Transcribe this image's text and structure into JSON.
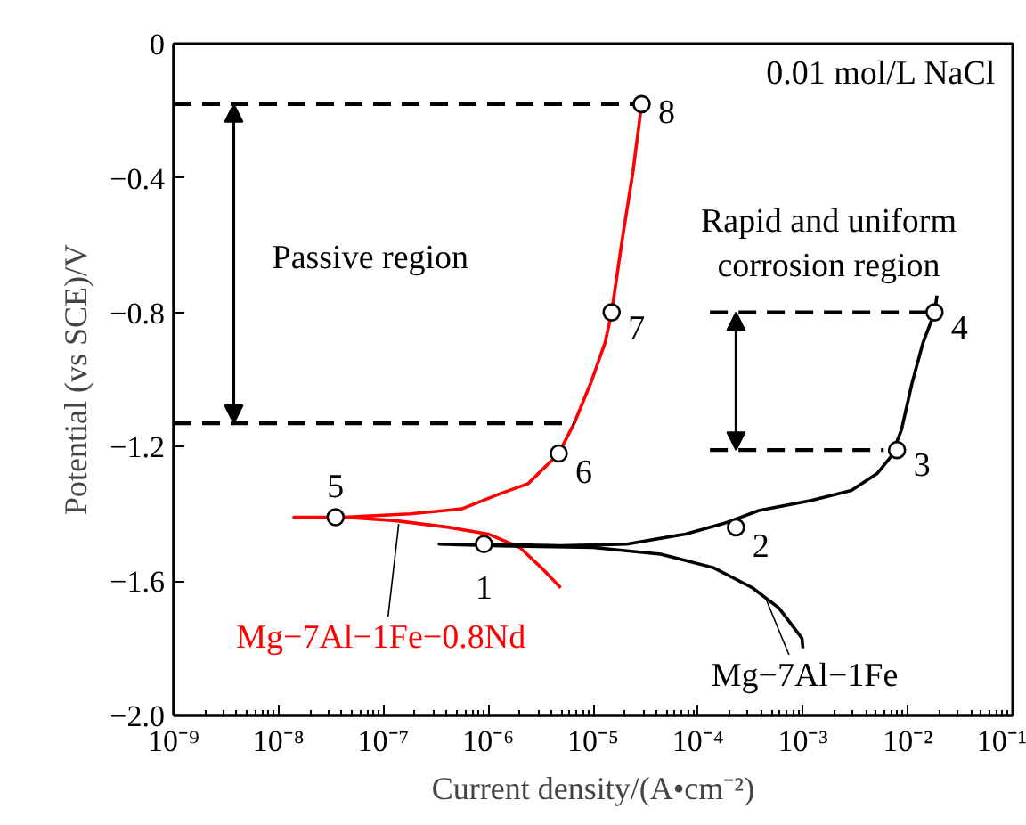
{
  "chart_data": {
    "type": "line",
    "xlabel": "Current density/(A•cm⁻²)",
    "ylabel": "Potential (vs SCE)/V",
    "log": "x",
    "xlim": [
      1e-09,
      0.1
    ],
    "ylim": [
      -2.0,
      0
    ],
    "xticks": [
      {
        "value": 1e-09,
        "label": "10⁻⁹"
      },
      {
        "value": 1e-08,
        "label": "10⁻⁸"
      },
      {
        "value": 1e-07,
        "label": "10⁻⁷"
      },
      {
        "value": 1e-06,
        "label": "10⁻⁶"
      },
      {
        "value": 1e-05,
        "label": "10⁻⁵"
      },
      {
        "value": 0.0001,
        "label": "10⁻⁴"
      },
      {
        "value": 0.001,
        "label": "10⁻³"
      },
      {
        "value": 0.01,
        "label": "10⁻²"
      },
      {
        "value": 0.1,
        "label": "10⁻¹"
      }
    ],
    "yticks": [
      0,
      {
        "value": -0.4,
        "label": "−0.4"
      },
      {
        "value": -0.8,
        "label": "−0.8"
      },
      {
        "value": -1.2,
        "label": "−1.2"
      },
      {
        "value": -1.6,
        "label": "−1.6"
      },
      {
        "value": -2.0,
        "label": "−2.0"
      }
    ],
    "series": [
      {
        "color": "#ff0000",
        "line_style": "solid",
        "x": [
          4.9e-06,
          3.2e-06,
          2e-06,
          1e-06,
          4.2e-07,
          1.3e-07,
          4.2e-08,
          1.4e-08,
          4.2e-08,
          1.8e-07,
          5.6e-07,
          1.3e-06,
          2.4e-06,
          4.7e-06,
          6.6e-06,
          9.5e-06,
          1.3e-05,
          1.5e-05,
          1.9e-05,
          2.4e-05,
          2.9e-05
        ],
        "values": [
          -1.62,
          -1.56,
          -1.5,
          -1.46,
          -1.44,
          -1.42,
          -1.41,
          -1.41,
          -1.41,
          -1.4,
          -1.385,
          -1.34,
          -1.31,
          -1.22,
          -1.13,
          -1.01,
          -0.89,
          -0.8,
          -0.58,
          -0.38,
          -0.18
        ]
      },
      {
        "color": "#000000",
        "line_style": "solid",
        "x": [
          0.001,
          0.00098,
          0.00059,
          0.00033,
          0.00014,
          4.4e-05,
          1e-05,
          1.3e-06,
          3.4e-07,
          9.1e-07,
          4.9e-06,
          2.1e-05,
          7.6e-05,
          0.00017,
          0.00021,
          0.00038,
          0.0012,
          0.0029,
          0.0051,
          0.0069,
          0.0087,
          0.011,
          0.014,
          0.018,
          0.019
        ],
        "values": [
          -1.8,
          -1.77,
          -1.68,
          -1.62,
          -1.56,
          -1.52,
          -1.5,
          -1.495,
          -1.49,
          -1.49,
          -1.495,
          -1.49,
          -1.46,
          -1.43,
          -1.42,
          -1.39,
          -1.36,
          -1.33,
          -1.28,
          -1.23,
          -1.15,
          -1.01,
          -0.89,
          -0.8,
          -0.75
        ]
      },
      {
        "color": "#000000",
        "line_style": "dashed",
        "x": [
          1e-09,
          2.9e-05
        ],
        "values": [
          -0.18,
          -0.18
        ]
      },
      {
        "color": "#000000",
        "line_style": "dashed",
        "x": [
          1e-09,
          6.6e-06
        ],
        "values": [
          -1.13,
          -1.13
        ]
      },
      {
        "color": "#000000",
        "line_style": "dashed",
        "x": [
          0.00013,
          0.018
        ],
        "values": [
          -0.8,
          -0.8
        ]
      },
      {
        "color": "#000000",
        "line_style": "dashed",
        "x": [
          0.00013,
          0.0059
        ],
        "values": [
          -1.21,
          -1.21
        ]
      },
      {
        "type": "scatter",
        "color": "#000000",
        "marker": "circle",
        "x": [
          9.1e-07,
          0.00023,
          0.0079,
          0.018,
          3.5e-08,
          4.7e-06,
          1.5e-05,
          2.9e-05
        ],
        "values": [
          -1.49,
          -1.44,
          -1.21,
          -0.8,
          -1.41,
          -1.22,
          -0.8,
          -0.18
        ]
      }
    ],
    "annotations": [
      "0.01 mol/L NaCl",
      "Passive region",
      {
        "text": "Rapid and uniform\ncorrosion region",
        "x": 0.00027,
        "y": -0.8
      },
      {
        "text": "Mg−7Al−1Fe−0.8Nd",
        "x": 1.4e-07,
        "y": -1.43
      },
      {
        "text": "Mg−7Al−1Fe",
        "x": 0.00044,
        "y": -1.65
      },
      {
        "text": "1",
        "x": 9.1e-07,
        "y": -1.49
      },
      {
        "text": "2",
        "x": 0.00023,
        "y": -1.44
      },
      {
        "text": "3",
        "x": 0.0079,
        "y": -1.21
      },
      {
        "text": "4",
        "x": 0.018,
        "y": -0.8
      },
      {
        "text": "5",
        "x": 3.5e-08,
        "y": -1.41
      },
      {
        "text": "6",
        "x": 4.7e-06,
        "y": -1.22
      },
      {
        "text": "7",
        "x": 1.5e-05,
        "y": -0.8
      },
      {
        "text": "8",
        "x": 2.9e-05,
        "y": -0.18
      }
    ]
  }
}
